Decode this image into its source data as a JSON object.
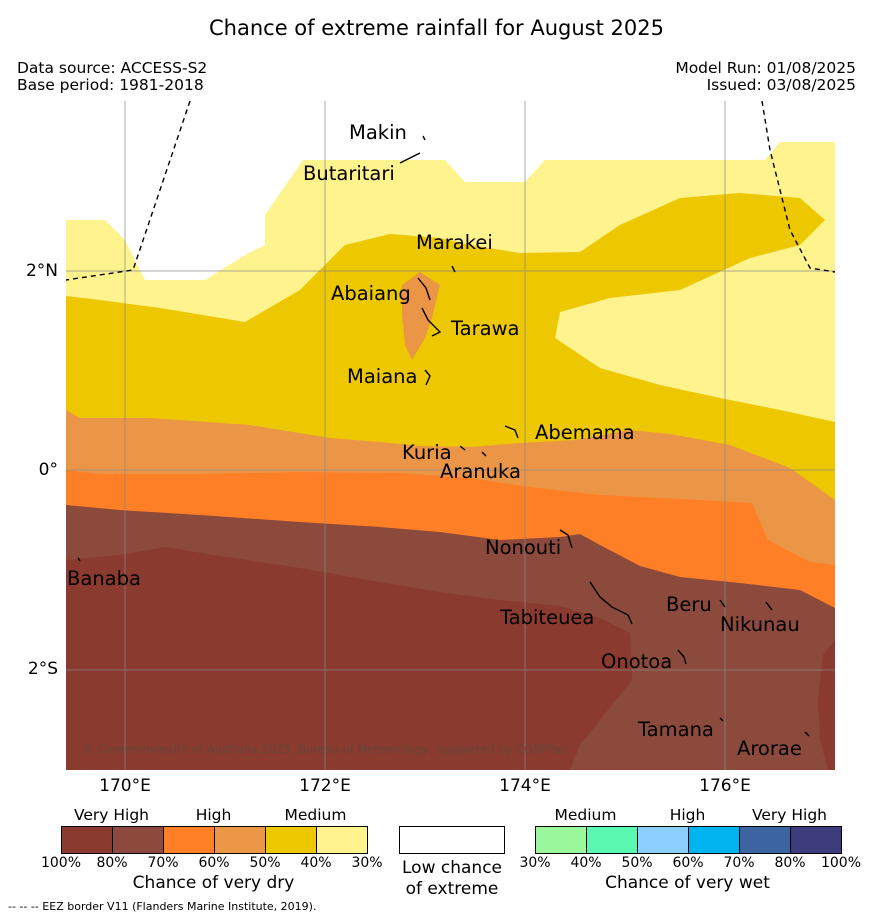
{
  "header": {
    "title": "Chance of extreme rainfall for August 2025",
    "data_source": "Data source: ACCESS-S2",
    "base_period": "Base period: 1981-2018",
    "model_run": "Model Run: 01/08/2025",
    "issued": "Issued: 03/08/2025"
  },
  "map": {
    "lat_labels": [
      "2°N",
      "0°",
      "2°S"
    ],
    "lon_labels": [
      "170°E",
      "172°E",
      "174°E",
      "176°E"
    ],
    "places": [
      "Makin",
      "Butaritari",
      "Marakei",
      "Abaiang",
      "Tarawa",
      "Maiana",
      "Abemama",
      "Kuria",
      "Aranuka",
      "Nonouti",
      "Banaba",
      "Beru",
      "Nikunau",
      "Tabiteuea",
      "Onotoa",
      "Tamana",
      "Arorae"
    ],
    "copyright": "© Commonwealth of Australia 2025, Bureau of Meteorology, supported by COSPPac"
  },
  "legend": {
    "dry": {
      "categories": [
        "Very High",
        "High",
        "Medium"
      ],
      "caption": "Chance of very dry",
      "ticks": [
        "100%",
        "80%",
        "70%",
        "60%",
        "50%",
        "40%",
        "30%"
      ],
      "colors": [
        "#8b3a2f",
        "#8b4a3b",
        "#ff7f27",
        "#eb9646",
        "#edc700",
        "#fef38d"
      ]
    },
    "neutral": {
      "caption_line1": "Low chance",
      "caption_line2": "of extreme"
    },
    "wet": {
      "categories": [
        "Medium",
        "High",
        "Very High"
      ],
      "caption": "Chance of very wet",
      "ticks": [
        "30%",
        "40%",
        "50%",
        "60%",
        "70%",
        "80%",
        "100%"
      ],
      "colors": [
        "#9bf79b",
        "#5af7b0",
        "#8ccfff",
        "#00b4f0",
        "#3c64a0",
        "#3c3c7d"
      ]
    },
    "eez_note": "--  --  -- EEZ border V11 (Flanders Marine Institute, 2019)."
  }
}
